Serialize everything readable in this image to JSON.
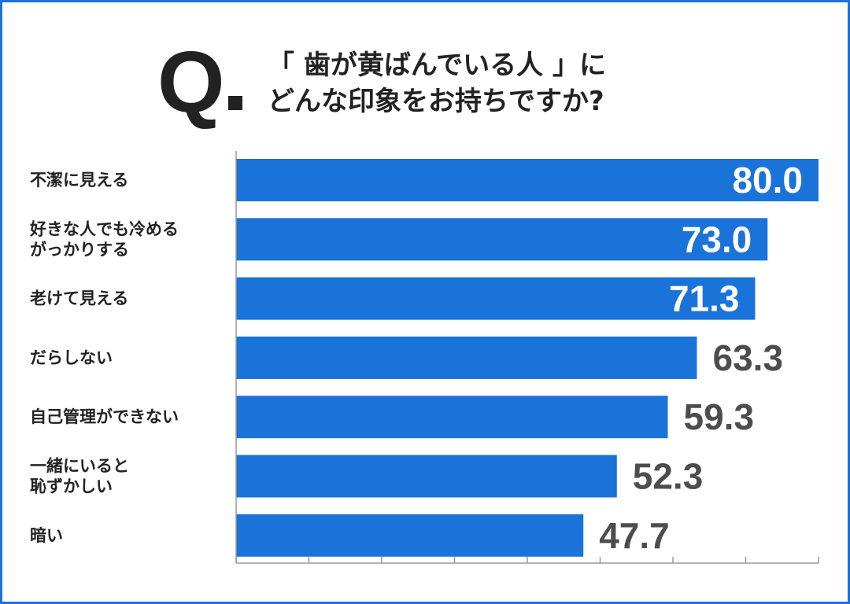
{
  "header": {
    "q_mark": "Q",
    "question_lines": [
      "「 歯が黄ばんでいる人 」に",
      "どんな印象をお持ちですか?"
    ]
  },
  "colors": {
    "border": "#1a73d9",
    "bar": "#1a73d9",
    "value_inside": "#ffffff",
    "value_outside": "#4d4d4d",
    "text": "#222222",
    "axis": "#9a9a9a"
  },
  "chart_data": {
    "type": "bar",
    "orientation": "horizontal",
    "categories": [
      [
        "不潔に見える"
      ],
      [
        "好きな人でも冷める",
        "がっかりする"
      ],
      [
        "老けて見える"
      ],
      [
        "だらしない"
      ],
      [
        "自己管理ができない"
      ],
      [
        "一緒にいると",
        "恥ずかしい"
      ],
      [
        "暗い"
      ]
    ],
    "values": [
      80.0,
      73.0,
      71.3,
      63.3,
      59.3,
      52.3,
      47.7
    ],
    "value_labels": [
      "80.0",
      "73.0",
      "71.3",
      "63.3",
      "59.3",
      "52.3",
      "47.7"
    ],
    "value_label_inside": [
      true,
      true,
      true,
      false,
      false,
      false,
      false
    ],
    "xlim": [
      0,
      80
    ],
    "x_tick_count": 9,
    "grid": false
  }
}
